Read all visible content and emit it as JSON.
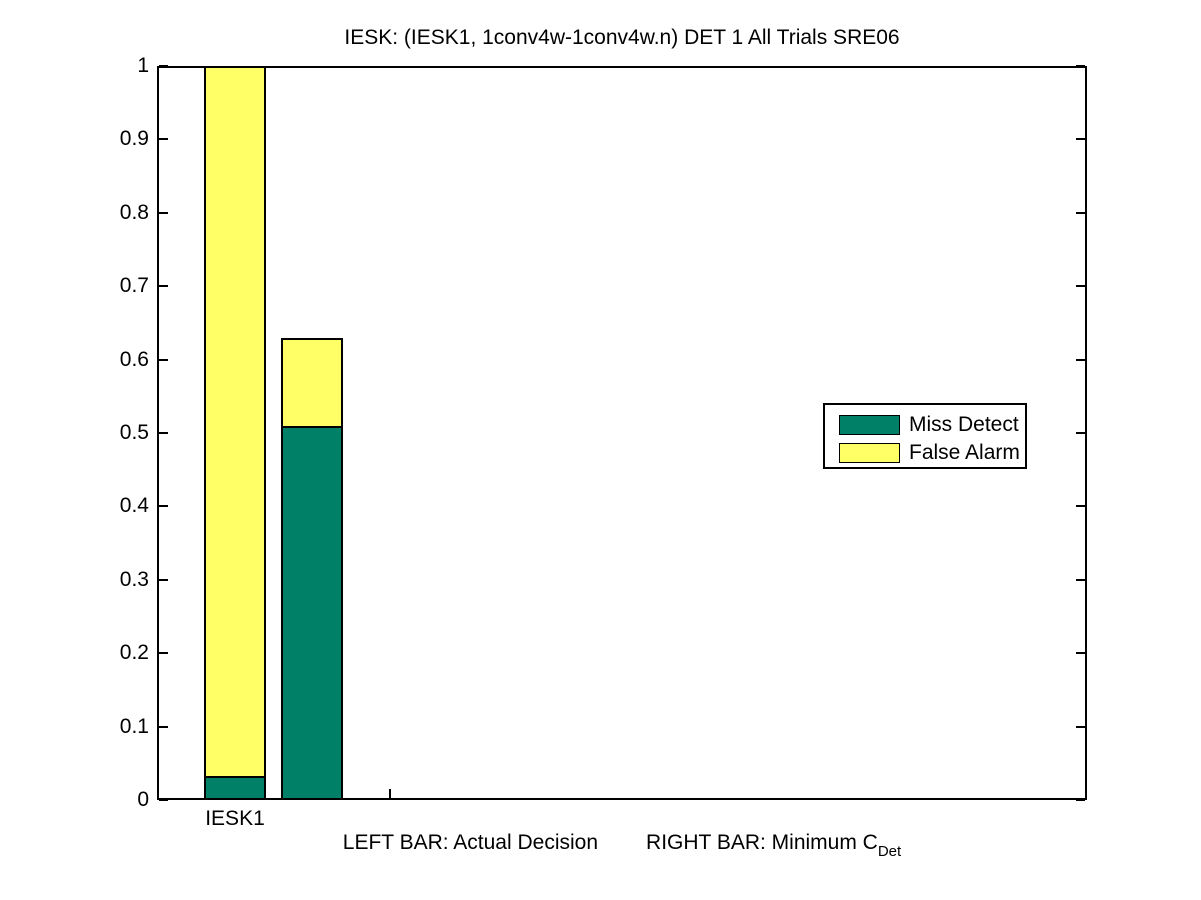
{
  "chart_data": {
    "type": "bar",
    "stacked": true,
    "title": "IESK: (IESK1, 1conv4w-1conv4w.n) DET 1 All Trials SRE06",
    "categories": [
      "IESK1"
    ],
    "series": [
      {
        "name": "Miss Detect",
        "color": "#008066",
        "values": [
          0.033,
          0.51
        ]
      },
      {
        "name": "False Alarm",
        "color": "#ffff66",
        "values": [
          0.967,
          0.12
        ]
      }
    ],
    "bar_meta": {
      "labels": [
        "Actual Decision",
        "Minimum CDet"
      ],
      "positions": [
        1,
        1.5
      ],
      "width": 0.4
    },
    "bar_totals": [
      1.0,
      0.63
    ],
    "xlim": [
      0.5,
      6.5
    ],
    "ylim": [
      0,
      1
    ],
    "yticks": [
      0,
      0.1,
      0.2,
      0.3,
      0.4,
      0.5,
      0.6,
      0.7,
      0.8,
      0.9,
      1
    ],
    "ytick_labels": [
      "0",
      "0.1",
      "0.2",
      "0.3",
      "0.4",
      "0.5",
      "0.6",
      "0.7",
      "0.8",
      "0.9",
      "1"
    ],
    "xticks": [
      1,
      2
    ],
    "xtick_labels": [
      "IESK1",
      ""
    ],
    "xlabel": {
      "left": "LEFT BAR: Actual Decision",
      "right": "RIGHT BAR: Minimum C",
      "subscript": "Det"
    },
    "legend": {
      "entries": [
        "Miss Detect",
        "False Alarm"
      ],
      "position": "center-right"
    },
    "grid": false,
    "axis_color": "#000000",
    "background_color": "#ffffff"
  }
}
